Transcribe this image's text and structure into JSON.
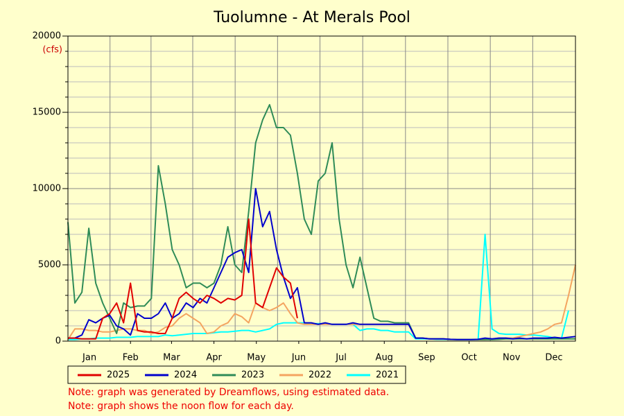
{
  "chart_data": {
    "type": "line",
    "title": "Tuolumne - At Merals Pool",
    "y_label": "(cfs)",
    "x": [
      0,
      5,
      10,
      15,
      20,
      25,
      30,
      35,
      40,
      45,
      50,
      55,
      60,
      65,
      70,
      75,
      80,
      85,
      90,
      95,
      100,
      105,
      110,
      115,
      120,
      125,
      130,
      135,
      140,
      145,
      150,
      155,
      160,
      165,
      170,
      175,
      180,
      185,
      190,
      195,
      200,
      205,
      210,
      215,
      220,
      225,
      230,
      235,
      240,
      245,
      250,
      255,
      260,
      265,
      270,
      275,
      280,
      285,
      290,
      295,
      300,
      305,
      310,
      315,
      320,
      325,
      330,
      335,
      340,
      345,
      350,
      355,
      360,
      365
    ],
    "xlim": [
      0,
      365
    ],
    "xticks": [
      {
        "value": 15.5,
        "label": "Jan"
      },
      {
        "value": 45,
        "label": "Feb"
      },
      {
        "value": 74.5,
        "label": "Mar"
      },
      {
        "value": 105,
        "label": "Apr"
      },
      {
        "value": 135.5,
        "label": "May"
      },
      {
        "value": 166,
        "label": "Jun"
      },
      {
        "value": 196.5,
        "label": "Jul"
      },
      {
        "value": 227.5,
        "label": "Aug"
      },
      {
        "value": 258,
        "label": "Sep"
      },
      {
        "value": 288.5,
        "label": "Oct"
      },
      {
        "value": 319,
        "label": "Nov"
      },
      {
        "value": 349.5,
        "label": "Dec"
      }
    ],
    "ylim": [
      0,
      20000
    ],
    "yticks": [
      0,
      5000,
      10000,
      15000,
      20000
    ],
    "yminorticks": [
      1000,
      2000,
      3000,
      4000,
      6000,
      7000,
      8000,
      9000,
      11000,
      12000,
      13000,
      14000,
      16000,
      17000,
      18000,
      19000
    ],
    "grid": true,
    "series": [
      {
        "name": "2025",
        "color": "#e00000",
        "values": [
          200,
          200,
          150,
          150,
          150,
          1500,
          1800,
          2500,
          1200,
          3800,
          700,
          600,
          600,
          500,
          500,
          1500,
          2800,
          3200,
          2800,
          2500,
          3000,
          2800,
          2500,
          2800,
          2700,
          3000,
          8000,
          2500,
          2200,
          3500,
          4800,
          4200,
          3800,
          1500,
          null,
          null,
          null,
          null,
          null,
          null,
          null,
          null,
          null,
          null,
          null,
          null,
          null,
          null,
          null,
          null,
          null,
          null,
          null,
          null,
          null,
          null,
          null,
          null,
          null,
          null,
          null,
          null,
          null,
          null,
          null,
          null,
          null,
          null,
          null,
          null,
          null,
          null,
          null,
          null
        ]
      },
      {
        "name": "2024",
        "color": "#0000cc",
        "values": [
          200,
          200,
          400,
          1400,
          1200,
          1500,
          1700,
          1000,
          800,
          400,
          1800,
          1500,
          1500,
          1800,
          2500,
          1500,
          1800,
          2500,
          2200,
          2800,
          2500,
          3500,
          4500,
          5500,
          5800,
          6000,
          4500,
          10000,
          7500,
          8500,
          6000,
          4200,
          2800,
          3500,
          1200,
          1200,
          1100,
          1200,
          1100,
          1100,
          1100,
          1200,
          1100,
          1100,
          1100,
          1100,
          1100,
          1100,
          1100,
          1100,
          200,
          200,
          150,
          150,
          150,
          120,
          100,
          100,
          100,
          120,
          200,
          150,
          200,
          200,
          150,
          200,
          150,
          200,
          200,
          200,
          250,
          200,
          250,
          300
        ]
      },
      {
        "name": "2023",
        "color": "#2e8b57",
        "values": [
          7800,
          2500,
          3200,
          7400,
          3800,
          2500,
          1500,
          500,
          2500,
          2200,
          2300,
          2300,
          2800,
          11500,
          9000,
          6000,
          5000,
          3500,
          3800,
          3800,
          3500,
          3800,
          5000,
          7500,
          5000,
          4500,
          8500,
          13000,
          14500,
          15500,
          14000,
          14000,
          13500,
          11000,
          8000,
          7000,
          10500,
          11000,
          13000,
          8000,
          5000,
          3500,
          5500,
          3500,
          1500,
          1300,
          1300,
          1200,
          1200,
          1200,
          200,
          200,
          150,
          150,
          150,
          120,
          100,
          100,
          100,
          100,
          100,
          100,
          120,
          150,
          150,
          150,
          150,
          150,
          150,
          150,
          150,
          150,
          150,
          150
        ]
      },
      {
        "name": "2022",
        "color": "#f4a460",
        "values": [
          100,
          800,
          800,
          700,
          700,
          600,
          600,
          700,
          800,
          800,
          700,
          700,
          500,
          600,
          900,
          1000,
          1500,
          1800,
          1500,
          1200,
          500,
          600,
          1000,
          1200,
          1800,
          1600,
          1200,
          2500,
          2200,
          2000,
          2200,
          2500,
          1800,
          1200,
          1100,
          1100,
          1100,
          1100,
          1100,
          1100,
          1100,
          1100,
          1100,
          1100,
          1100,
          1100,
          1100,
          1100,
          1100,
          1100,
          200,
          200,
          150,
          150,
          150,
          100,
          100,
          100,
          100,
          100,
          100,
          150,
          150,
          200,
          200,
          300,
          400,
          500,
          600,
          800,
          1100,
          1200,
          3000,
          5000
        ]
      },
      {
        "name": "2021",
        "color": "#00ffff",
        "values": [
          100,
          100,
          150,
          150,
          200,
          200,
          200,
          250,
          250,
          250,
          300,
          300,
          300,
          300,
          400,
          350,
          400,
          450,
          500,
          500,
          500,
          550,
          600,
          600,
          650,
          700,
          700,
          600,
          700,
          800,
          1100,
          1200,
          1200,
          1200,
          1200,
          1150,
          1150,
          1150,
          1100,
          1100,
          1100,
          1100,
          700,
          800,
          800,
          700,
          700,
          600,
          600,
          600,
          150,
          150,
          150,
          120,
          120,
          100,
          100,
          100,
          100,
          100,
          7000,
          800,
          500,
          450,
          450,
          450,
          400,
          400,
          350,
          300,
          200,
          200,
          2000,
          null
        ]
      }
    ],
    "notes": [
      "Note: graph was generated by Dreamflows, using estimated data.",
      "Note: graph shows the noon flow for each day."
    ]
  }
}
